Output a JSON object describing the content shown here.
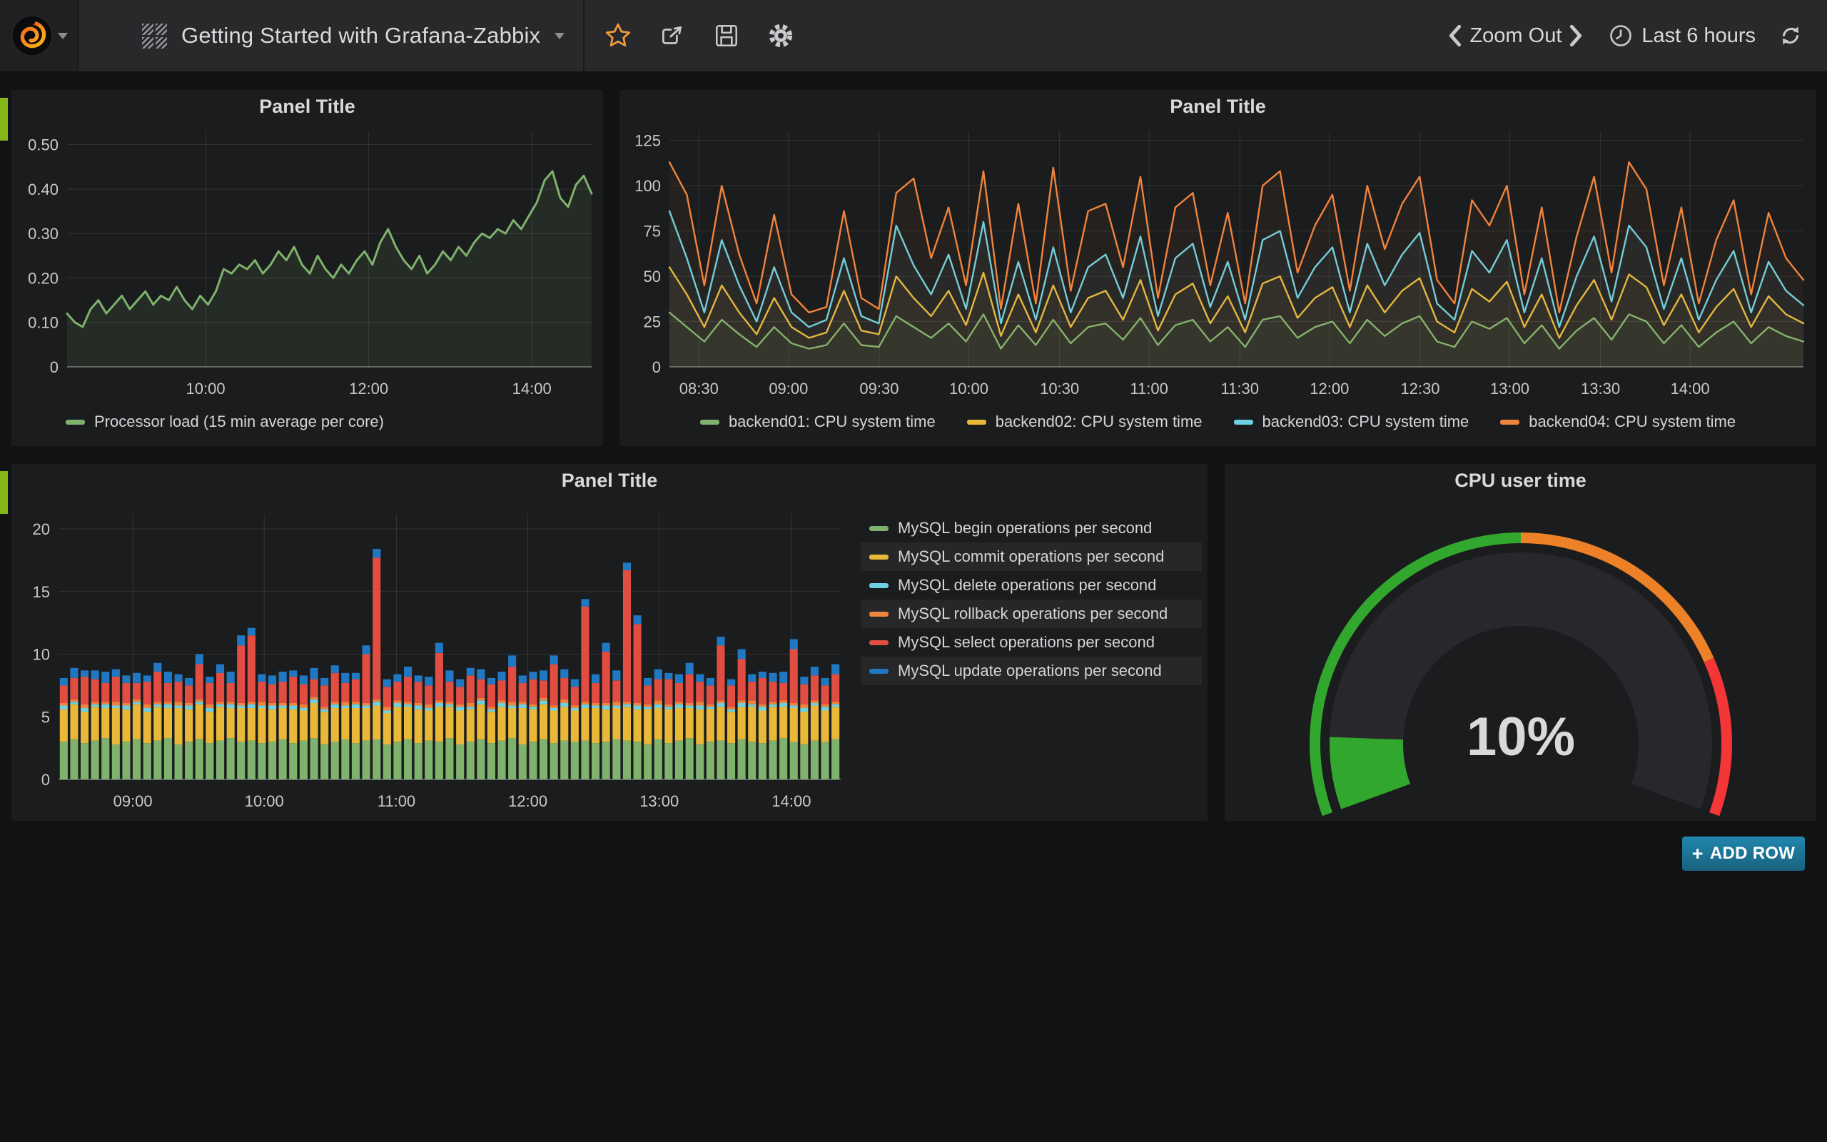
{
  "navbar": {
    "title": "Getting Started with Grafana-Zabbix",
    "zoom_out": "Zoom Out",
    "time_range": "Last 6 hours"
  },
  "panels": {
    "p1": {
      "title": "Panel Title"
    },
    "p2": {
      "title": "Panel Title"
    },
    "p3": {
      "title": "Panel Title"
    },
    "gauge": {
      "title": "CPU user time"
    }
  },
  "add_row": {
    "plus": "+",
    "label": "ADD ROW"
  },
  "colors": {
    "green": "#7EB26D",
    "yellow": "#EAB839",
    "cyan": "#6ED0E0",
    "orange": "#EF843C",
    "red": "#E24D42",
    "blue": "#1F78C1",
    "row_handle": "#84b819",
    "star": "#ef9b3c",
    "add_row_top": "#2186ad",
    "add_row_bottom": "#19627f",
    "gauge_green": "#31a82d",
    "gauge_orange": "#ed8128",
    "gauge_red": "#f53636",
    "gauge_body": "#28282c",
    "value_text": "#d8d9da"
  },
  "chart_data": [
    {
      "id": "c1",
      "type": "line",
      "title": "Panel Title",
      "ylim": [
        0,
        0.53
      ],
      "y_decimals": 2,
      "grid": true,
      "legend_position": "bottom-left",
      "yticks": [
        0,
        0.1,
        0.2,
        0.3,
        0.4,
        0.5
      ],
      "xticks": [
        {
          "label": "10:00",
          "f": 0.264
        },
        {
          "label": "12:00",
          "f": 0.575
        },
        {
          "label": "14:00",
          "f": 0.886
        }
      ],
      "x_range": [
        "08:20",
        "14:45"
      ],
      "line_width": 3,
      "fill_opacity": 0.1,
      "series": [
        {
          "name": "Processor load (15 min average per core)",
          "color": "#7EB26D",
          "values": [
            0.12,
            0.1,
            0.09,
            0.13,
            0.15,
            0.12,
            0.14,
            0.16,
            0.13,
            0.15,
            0.17,
            0.14,
            0.16,
            0.15,
            0.18,
            0.15,
            0.13,
            0.16,
            0.14,
            0.17,
            0.22,
            0.21,
            0.23,
            0.22,
            0.24,
            0.21,
            0.23,
            0.26,
            0.24,
            0.27,
            0.23,
            0.21,
            0.25,
            0.22,
            0.2,
            0.23,
            0.21,
            0.24,
            0.26,
            0.23,
            0.28,
            0.31,
            0.27,
            0.24,
            0.22,
            0.25,
            0.21,
            0.23,
            0.26,
            0.24,
            0.27,
            0.25,
            0.28,
            0.3,
            0.29,
            0.31,
            0.3,
            0.33,
            0.31,
            0.34,
            0.37,
            0.42,
            0.44,
            0.38,
            0.36,
            0.41,
            0.43,
            0.39
          ]
        }
      ]
    },
    {
      "id": "c2",
      "type": "line",
      "title": "Panel Title",
      "ylim": [
        0,
        130
      ],
      "grid": true,
      "legend_position": "bottom-center",
      "yticks": [
        0,
        25,
        50,
        75,
        100,
        125
      ],
      "xticks": [
        {
          "label": "08:30",
          "f": 0.026
        },
        {
          "label": "09:00",
          "f": 0.105
        },
        {
          "label": "09:30",
          "f": 0.185
        },
        {
          "label": "10:00",
          "f": 0.264
        },
        {
          "label": "10:30",
          "f": 0.344
        },
        {
          "label": "11:00",
          "f": 0.423
        },
        {
          "label": "11:30",
          "f": 0.503
        },
        {
          "label": "12:00",
          "f": 0.582
        },
        {
          "label": "12:30",
          "f": 0.662
        },
        {
          "label": "13:00",
          "f": 0.741
        },
        {
          "label": "13:30",
          "f": 0.821
        },
        {
          "label": "14:00",
          "f": 0.9
        }
      ],
      "x_range": [
        "08:20",
        "14:45"
      ],
      "line_width": 2.4,
      "fill_opacity": 0.05,
      "series": [
        {
          "name": "backend01: CPU system time",
          "color": "#7EB26D",
          "values": [
            30,
            22,
            14,
            26,
            18,
            11,
            22,
            13,
            10,
            12,
            24,
            12,
            11,
            28,
            22,
            16,
            24,
            14,
            29,
            10,
            23,
            12,
            26,
            13,
            22,
            24,
            15,
            27,
            12,
            23,
            26,
            14,
            22,
            11,
            26,
            28,
            16,
            22,
            25,
            13,
            26,
            17,
            24,
            28,
            14,
            11,
            25,
            21,
            27,
            13,
            23,
            10,
            20,
            27,
            15,
            29,
            25,
            13,
            23,
            11,
            19,
            25,
            13,
            22,
            17,
            14
          ]
        },
        {
          "name": "backend02: CPU system time",
          "color": "#EAB839",
          "values": [
            55,
            40,
            22,
            45,
            30,
            18,
            38,
            22,
            16,
            19,
            42,
            20,
            18,
            50,
            38,
            28,
            42,
            23,
            52,
            17,
            40,
            19,
            45,
            22,
            38,
            42,
            26,
            48,
            20,
            40,
            46,
            24,
            39,
            19,
            46,
            50,
            27,
            38,
            44,
            22,
            45,
            30,
            42,
            49,
            25,
            19,
            43,
            36,
            47,
            22,
            40,
            16,
            34,
            48,
            26,
            51,
            44,
            23,
            40,
            19,
            33,
            43,
            22,
            39,
            29,
            24
          ]
        },
        {
          "name": "backend03: CPU system time",
          "color": "#6ED0E0",
          "values": [
            86,
            60,
            30,
            70,
            45,
            25,
            55,
            30,
            22,
            26,
            60,
            28,
            24,
            78,
            56,
            40,
            62,
            32,
            80,
            24,
            58,
            26,
            66,
            30,
            55,
            62,
            38,
            72,
            28,
            60,
            68,
            33,
            58,
            26,
            70,
            75,
            38,
            55,
            66,
            30,
            68,
            45,
            62,
            74,
            35,
            26,
            64,
            52,
            70,
            30,
            60,
            22,
            50,
            72,
            36,
            78,
            66,
            32,
            60,
            26,
            48,
            64,
            30,
            58,
            42,
            34
          ]
        },
        {
          "name": "backend04: CPU system time",
          "color": "#EF843C",
          "values": [
            113,
            95,
            45,
            100,
            62,
            35,
            84,
            40,
            30,
            33,
            86,
            38,
            32,
            96,
            104,
            60,
            88,
            45,
            108,
            32,
            90,
            35,
            110,
            42,
            86,
            90,
            55,
            105,
            38,
            88,
            96,
            45,
            85,
            35,
            100,
            108,
            52,
            78,
            95,
            42,
            100,
            65,
            90,
            105,
            48,
            35,
            92,
            78,
            100,
            40,
            88,
            30,
            72,
            105,
            52,
            113,
            98,
            45,
            88,
            35,
            70,
            92,
            40,
            85,
            60,
            48
          ]
        }
      ]
    },
    {
      "id": "c3",
      "type": "bar",
      "title": "Panel Title",
      "stacked": true,
      "ylim": [
        0,
        21.2
      ],
      "grid": true,
      "legend_position": "right",
      "yticks": [
        0,
        5,
        10,
        15,
        20
      ],
      "xticks": [
        {
          "label": "09:00",
          "f": 0.095
        },
        {
          "label": "10:00",
          "f": 0.263
        },
        {
          "label": "11:00",
          "f": 0.432
        },
        {
          "label": "12:00",
          "f": 0.6
        },
        {
          "label": "13:00",
          "f": 0.768
        },
        {
          "label": "14:00",
          "f": 0.937
        }
      ],
      "x_range": [
        "08:30",
        "14:25"
      ],
      "series": [
        {
          "name": "MySQL begin operations per second",
          "color": "#7EB26D"
        },
        {
          "name": "MySQL commit operations per second",
          "color": "#EAB839"
        },
        {
          "name": "MySQL delete operations per second",
          "color": "#6ED0E0"
        },
        {
          "name": "MySQL rollback operations per second",
          "color": "#EF843C"
        },
        {
          "name": "MySQL select operations per second",
          "color": "#E24D42"
        },
        {
          "name": "MySQL update operations per second",
          "color": "#1F78C1"
        }
      ],
      "bars": [
        [
          3.0,
          2.6,
          0.3,
          0.2,
          1.4,
          0.6
        ],
        [
          3.2,
          2.8,
          0.2,
          0.2,
          1.7,
          0.8
        ],
        [
          2.9,
          2.5,
          0.3,
          0.3,
          2.2,
          0.5
        ],
        [
          3.1,
          2.7,
          0.2,
          0.2,
          1.8,
          0.7
        ],
        [
          3.3,
          2.4,
          0.3,
          0.2,
          1.5,
          0.9
        ],
        [
          2.8,
          2.9,
          0.2,
          0.3,
          2.0,
          0.6
        ],
        [
          3.0,
          2.6,
          0.3,
          0.2,
          1.6,
          0.6
        ],
        [
          3.2,
          2.8,
          0.2,
          0.2,
          1.3,
          0.8
        ],
        [
          2.9,
          2.5,
          0.3,
          0.3,
          1.8,
          0.5
        ],
        [
          3.1,
          2.7,
          0.2,
          0.2,
          2.4,
          0.7
        ],
        [
          3.3,
          2.4,
          0.3,
          0.2,
          1.5,
          0.9
        ],
        [
          2.8,
          2.9,
          0.2,
          0.3,
          1.6,
          0.6
        ],
        [
          3.0,
          2.6,
          0.3,
          0.2,
          1.4,
          0.6
        ],
        [
          3.2,
          2.8,
          0.2,
          0.2,
          2.8,
          0.8
        ],
        [
          2.9,
          2.5,
          0.3,
          0.3,
          1.7,
          0.5
        ],
        [
          3.1,
          2.7,
          0.2,
          0.2,
          2.3,
          0.7
        ],
        [
          3.3,
          2.4,
          0.3,
          0.2,
          1.5,
          0.9
        ],
        [
          3.0,
          2.7,
          0.2,
          0.2,
          4.6,
          0.8
        ],
        [
          3.1,
          2.6,
          0.3,
          0.2,
          5.3,
          0.6
        ],
        [
          2.9,
          2.8,
          0.2,
          0.3,
          1.6,
          0.6
        ],
        [
          3.0,
          2.6,
          0.3,
          0.2,
          1.5,
          0.7
        ],
        [
          3.2,
          2.5,
          0.2,
          0.2,
          1.7,
          0.8
        ],
        [
          2.9,
          2.7,
          0.3,
          0.2,
          2.1,
          0.5
        ],
        [
          3.1,
          2.4,
          0.2,
          0.3,
          1.6,
          0.7
        ],
        [
          3.3,
          2.8,
          0.3,
          0.2,
          1.4,
          0.9
        ],
        [
          2.8,
          2.6,
          0.2,
          0.2,
          1.7,
          0.6
        ],
        [
          3.0,
          2.7,
          0.3,
          0.2,
          2.3,
          0.6
        ],
        [
          3.2,
          2.5,
          0.2,
          0.3,
          1.5,
          0.8
        ],
        [
          2.9,
          2.8,
          0.3,
          0.2,
          1.8,
          0.5
        ],
        [
          3.1,
          2.6,
          0.2,
          0.2,
          3.9,
          0.7
        ],
        [
          3.2,
          2.7,
          0.3,
          0.2,
          11.3,
          0.7
        ],
        [
          2.8,
          2.5,
          0.2,
          0.3,
          1.6,
          0.6
        ],
        [
          3.0,
          2.8,
          0.3,
          0.2,
          1.5,
          0.6
        ],
        [
          3.2,
          2.6,
          0.2,
          0.2,
          2.0,
          0.8
        ],
        [
          2.9,
          2.7,
          0.3,
          0.2,
          1.7,
          0.5
        ],
        [
          3.1,
          2.4,
          0.2,
          0.3,
          1.5,
          0.7
        ],
        [
          3.0,
          2.8,
          0.3,
          0.2,
          3.8,
          0.8
        ],
        [
          3.3,
          2.5,
          0.2,
          0.2,
          1.6,
          0.9
        ],
        [
          2.8,
          2.7,
          0.3,
          0.2,
          1.4,
          0.6
        ],
        [
          3.0,
          2.6,
          0.2,
          0.3,
          2.2,
          0.6
        ],
        [
          3.2,
          2.8,
          0.3,
          0.2,
          1.5,
          0.8
        ],
        [
          2.9,
          2.5,
          0.2,
          0.2,
          1.8,
          0.5
        ],
        [
          3.1,
          2.7,
          0.3,
          0.2,
          1.6,
          0.7
        ],
        [
          3.3,
          2.4,
          0.2,
          0.3,
          2.8,
          0.9
        ],
        [
          2.8,
          2.9,
          0.3,
          0.2,
          1.5,
          0.6
        ],
        [
          3.0,
          2.6,
          0.2,
          0.2,
          2.0,
          0.6
        ],
        [
          3.2,
          2.8,
          0.3,
          0.2,
          1.4,
          0.8
        ],
        [
          2.9,
          2.6,
          0.2,
          0.2,
          3.3,
          0.7
        ],
        [
          3.1,
          2.7,
          0.3,
          0.3,
          1.7,
          0.7
        ],
        [
          3.0,
          2.5,
          0.2,
          0.2,
          1.5,
          0.6
        ],
        [
          3.1,
          2.6,
          0.3,
          0.2,
          7.6,
          0.6
        ],
        [
          2.9,
          2.8,
          0.2,
          0.2,
          1.6,
          0.7
        ],
        [
          3.0,
          2.6,
          0.3,
          0.2,
          4.1,
          0.7
        ],
        [
          3.2,
          2.5,
          0.2,
          0.3,
          1.7,
          0.8
        ],
        [
          3.1,
          2.7,
          0.2,
          0.2,
          10.5,
          0.6
        ],
        [
          3.0,
          2.6,
          0.3,
          0.2,
          6.3,
          0.7
        ],
        [
          2.8,
          2.8,
          0.2,
          0.2,
          1.5,
          0.6
        ],
        [
          3.2,
          2.5,
          0.3,
          0.3,
          1.7,
          0.8
        ],
        [
          2.9,
          2.7,
          0.2,
          0.2,
          2.0,
          0.5
        ],
        [
          3.1,
          2.6,
          0.3,
          0.2,
          1.5,
          0.7
        ],
        [
          3.3,
          2.4,
          0.2,
          0.2,
          2.3,
          0.9
        ],
        [
          2.8,
          2.8,
          0.3,
          0.3,
          1.6,
          0.6
        ],
        [
          3.0,
          2.6,
          0.2,
          0.2,
          1.5,
          0.6
        ],
        [
          3.1,
          2.7,
          0.3,
          0.2,
          4.4,
          0.7
        ],
        [
          2.9,
          2.5,
          0.2,
          0.2,
          1.7,
          0.5
        ],
        [
          3.2,
          2.6,
          0.3,
          0.2,
          3.3,
          0.8
        ],
        [
          3.0,
          2.8,
          0.2,
          0.3,
          1.5,
          0.6
        ],
        [
          2.9,
          2.6,
          0.3,
          0.2,
          2.1,
          0.5
        ],
        [
          3.1,
          2.7,
          0.2,
          0.2,
          1.6,
          0.7
        ],
        [
          3.3,
          2.5,
          0.3,
          0.2,
          1.4,
          0.9
        ],
        [
          3.0,
          2.7,
          0.2,
          0.2,
          4.3,
          0.8
        ],
        [
          2.8,
          2.6,
          0.3,
          0.3,
          1.6,
          0.6
        ],
        [
          3.1,
          2.8,
          0.2,
          0.2,
          2.0,
          0.7
        ],
        [
          3.0,
          2.5,
          0.3,
          0.2,
          1.5,
          0.6
        ],
        [
          3.2,
          2.6,
          0.2,
          0.2,
          2.2,
          0.8
        ]
      ]
    },
    {
      "id": "gauge",
      "type": "gauge",
      "title": "CPU user time",
      "value": 10,
      "unit": "%",
      "value_text": "10%",
      "min": 0,
      "max": 100,
      "thresholds": [
        {
          "to": 50,
          "color": "#31a82d"
        },
        {
          "to": 80,
          "color": "#ed8128"
        },
        {
          "to": 100,
          "color": "#f53636"
        }
      ]
    }
  ]
}
